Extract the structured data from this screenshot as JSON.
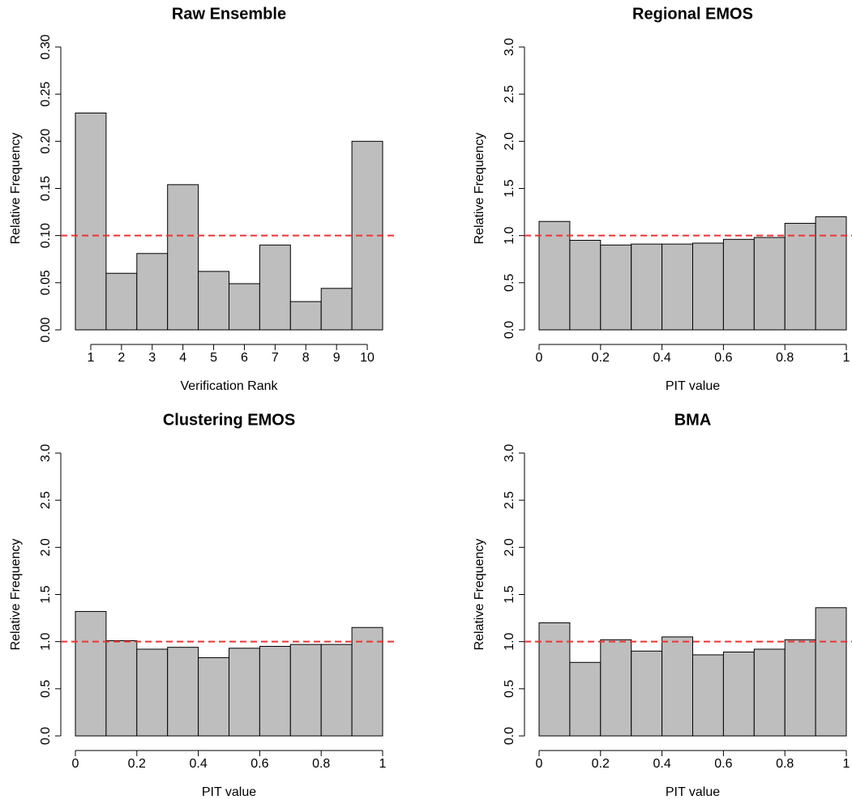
{
  "chart_data": [
    {
      "type": "bar",
      "title": "Raw Ensemble",
      "xlabel": "Verification Rank",
      "ylabel": "Relative Frequency",
      "categories": [
        "1",
        "2",
        "3",
        "4",
        "5",
        "6",
        "7",
        "8",
        "9",
        "10"
      ],
      "values": [
        0.23,
        0.06,
        0.081,
        0.154,
        0.062,
        0.049,
        0.09,
        0.03,
        0.044,
        0.2
      ],
      "color": "#bebebe",
      "reference_line": 0.1,
      "reference_color": "#ee3333",
      "ylim": [
        0,
        0.3
      ],
      "yticks": [
        {
          "value": 0,
          "label": "0.00"
        },
        {
          "value": 0.05,
          "label": "0.05"
        },
        {
          "value": 0.1,
          "label": "0.10"
        },
        {
          "value": 0.15,
          "label": "0.15"
        },
        {
          "value": 0.2,
          "label": "0.20"
        },
        {
          "value": 0.25,
          "label": "0.25"
        },
        {
          "value": 0.3,
          "label": "0.30"
        }
      ]
    },
    {
      "type": "histogram",
      "title": "Regional EMOS",
      "xlabel": "PIT value",
      "ylabel": "Relative Frequency",
      "bins": [
        0,
        0.1,
        0.2,
        0.3,
        0.4,
        0.5,
        0.6,
        0.7,
        0.8,
        0.9,
        1
      ],
      "values": [
        1.15,
        0.95,
        0.9,
        0.91,
        0.91,
        0.92,
        0.96,
        0.98,
        1.13,
        1.2
      ],
      "color": "#bebebe",
      "reference_line": 1,
      "reference_color": "#ee3333",
      "xlim": [
        0,
        1
      ],
      "xticks": [
        0,
        0.2,
        0.4,
        0.6,
        0.8,
        1
      ],
      "ylim": [
        0,
        3
      ],
      "yticks": [
        {
          "value": 0,
          "label": "0.0"
        },
        0.5,
        {
          "value": 1,
          "label": "1.0"
        },
        1.5,
        {
          "value": 2,
          "label": "2.0"
        },
        2.5,
        {
          "value": 3,
          "label": "3.0"
        }
      ]
    },
    {
      "type": "histogram",
      "title": "Clustering EMOS",
      "xlabel": "PIT value",
      "ylabel": "Relative Frequency",
      "bins": [
        0,
        0.1,
        0.2,
        0.3,
        0.4,
        0.5,
        0.6,
        0.7,
        0.8,
        0.9,
        1
      ],
      "values": [
        1.32,
        1.01,
        0.92,
        0.94,
        0.83,
        0.93,
        0.95,
        0.97,
        0.97,
        1.15
      ],
      "color": "#bebebe",
      "reference_line": 1,
      "reference_color": "#ee3333",
      "xlim": [
        0,
        1
      ],
      "xticks": [
        0,
        0.2,
        0.4,
        0.6,
        0.8,
        1
      ],
      "ylim": [
        0,
        3
      ],
      "yticks": [
        {
          "value": 0,
          "label": "0.0"
        },
        0.5,
        {
          "value": 1,
          "label": "1.0"
        },
        1.5,
        {
          "value": 2,
          "label": "2.0"
        },
        2.5,
        {
          "value": 3,
          "label": "3.0"
        }
      ]
    },
    {
      "type": "histogram",
      "title": "BMA",
      "xlabel": "PIT value",
      "ylabel": "Relative Frequency",
      "bins": [
        0,
        0.1,
        0.2,
        0.3,
        0.4,
        0.5,
        0.6,
        0.7,
        0.8,
        0.9,
        1
      ],
      "values": [
        1.2,
        0.78,
        1.02,
        0.9,
        1.05,
        0.86,
        0.89,
        0.92,
        1.02,
        1.36
      ],
      "color": "#bebebe",
      "reference_line": 1,
      "reference_color": "#ee3333",
      "xlim": [
        0,
        1
      ],
      "xticks": [
        0,
        0.2,
        0.4,
        0.6,
        0.8,
        1
      ],
      "ylim": [
        0,
        3
      ],
      "yticks": [
        {
          "value": 0,
          "label": "0.0"
        },
        0.5,
        {
          "value": 1,
          "label": "1.0"
        },
        1.5,
        {
          "value": 2,
          "label": "2.0"
        },
        2.5,
        {
          "value": 3,
          "label": "3.0"
        }
      ]
    }
  ]
}
